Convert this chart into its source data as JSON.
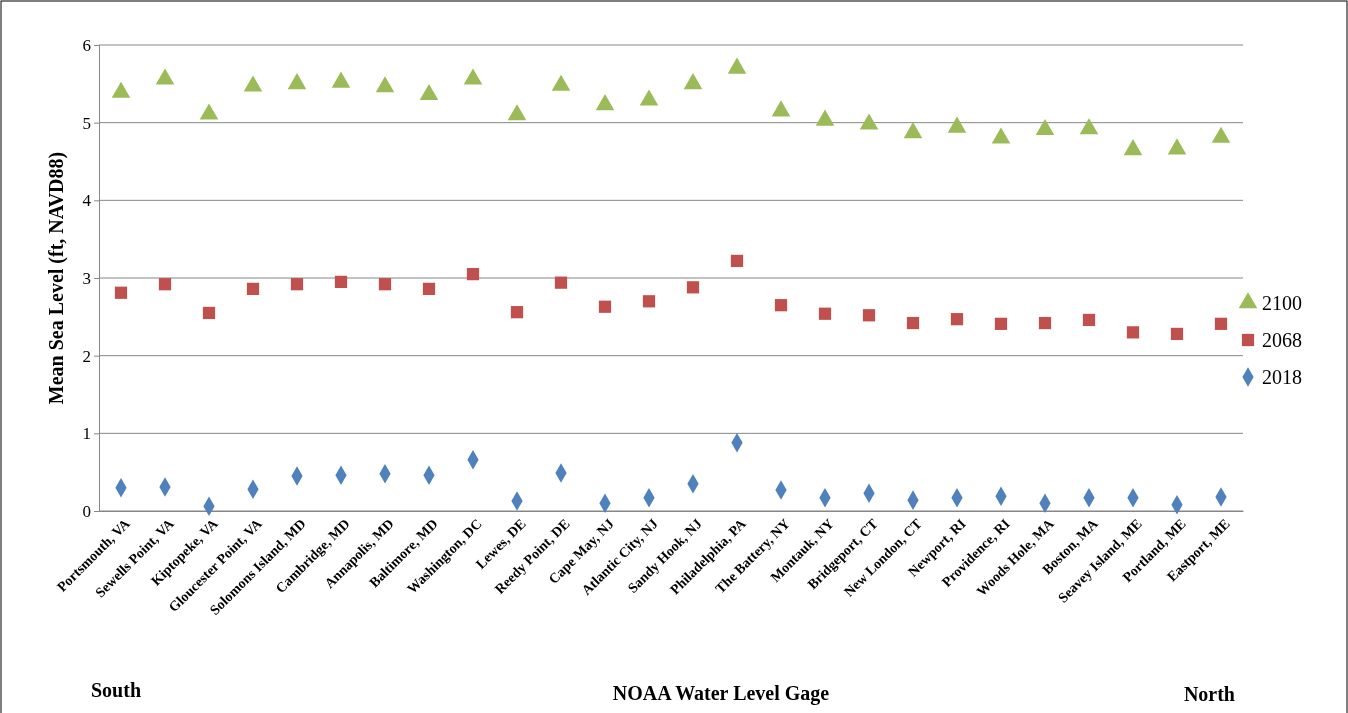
{
  "chart_data": {
    "type": "scatter",
    "ylabel": "Mean Sea Level (ft, NAVD88)",
    "xlabel": "NOAA Water Level Gage",
    "annotations": [
      "South",
      "North"
    ],
    "categories": [
      "Portsmouth, VA",
      "Sewells Point, VA",
      "Kiptopeke, VA",
      "Gloucester Point, VA",
      "Solomons Island, MD",
      "Cambridge, MD",
      "Annapolis, MD",
      "Baltimore, MD",
      "Washington, DC",
      "Lewes, DE",
      "Reedy Point, DE",
      "Cape May, NJ",
      "Atlantic City, NJ",
      "Sandy Hook, NJ",
      "Philadelphia, PA",
      "The Battery, NY",
      "Montauk, NY",
      "Bridgeport, CT",
      "New London, CT",
      "Newport, RI",
      "Providence, RI",
      "Woods Hole, MA",
      "Boston, MA",
      "Seavey Island, ME",
      "Portland, ME",
      "Eastport, ME"
    ],
    "series": [
      {
        "name": "2100",
        "color": "#9bbb59",
        "marker": "triangle",
        "values": [
          5.39,
          5.56,
          5.11,
          5.47,
          5.5,
          5.52,
          5.46,
          5.36,
          5.56,
          5.1,
          5.48,
          5.23,
          5.29,
          5.5,
          5.7,
          5.15,
          5.03,
          4.98,
          4.87,
          4.94,
          4.8,
          4.91,
          4.92,
          4.65,
          4.66,
          4.81
        ]
      },
      {
        "name": "2068",
        "color": "#c0504d",
        "marker": "square",
        "values": [
          2.81,
          2.92,
          2.55,
          2.86,
          2.92,
          2.95,
          2.92,
          2.86,
          3.05,
          2.56,
          2.94,
          2.63,
          2.7,
          2.88,
          3.22,
          2.65,
          2.54,
          2.52,
          2.42,
          2.47,
          2.41,
          2.42,
          2.46,
          2.3,
          2.28,
          2.41
        ]
      },
      {
        "name": "2018",
        "color": "#4f81bd",
        "marker": "diamond",
        "values": [
          0.3,
          0.31,
          0.06,
          0.28,
          0.45,
          0.46,
          0.48,
          0.46,
          0.66,
          0.13,
          0.49,
          0.1,
          0.17,
          0.35,
          0.88,
          0.27,
          0.17,
          0.23,
          0.14,
          0.17,
          0.19,
          0.1,
          0.17,
          0.17,
          0.08,
          0.18
        ]
      }
    ],
    "ylim": [
      0,
      6
    ],
    "yticks": [
      0,
      1,
      2,
      3,
      4,
      5,
      6
    ],
    "grid": "y",
    "legend": "right"
  }
}
